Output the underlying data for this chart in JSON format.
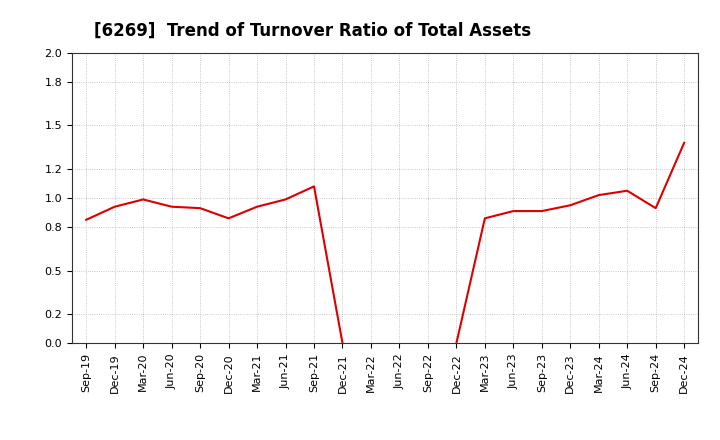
{
  "title": "[6269]  Trend of Turnover Ratio of Total Assets",
  "x_labels": [
    "Sep-19",
    "Dec-19",
    "Mar-20",
    "Jun-20",
    "Sep-20",
    "Dec-20",
    "Mar-21",
    "Jun-21",
    "Sep-21",
    "Dec-21",
    "Mar-22",
    "Jun-22",
    "Sep-22",
    "Dec-22",
    "Mar-23",
    "Jun-23",
    "Sep-23",
    "Dec-23",
    "Mar-24",
    "Jun-24",
    "Sep-24",
    "Dec-24"
  ],
  "y_values": [
    0.85,
    0.94,
    0.99,
    0.94,
    0.93,
    0.86,
    0.94,
    0.99,
    1.08,
    0.0,
    null,
    null,
    null,
    0.0,
    0.86,
    0.91,
    0.91,
    0.95,
    1.02,
    1.05,
    0.93,
    1.38
  ],
  "ylim": [
    0.0,
    2.0
  ],
  "yticks": [
    0.0,
    0.2,
    0.5,
    0.8,
    1.0,
    1.2,
    1.5,
    1.8,
    2.0
  ],
  "line_color": "#dd0000",
  "line_width": 1.5,
  "background_color": "#ffffff",
  "grid_color": "#999999",
  "title_fontsize": 12,
  "tick_fontsize": 8,
  "fig_width": 7.2,
  "fig_height": 4.4
}
